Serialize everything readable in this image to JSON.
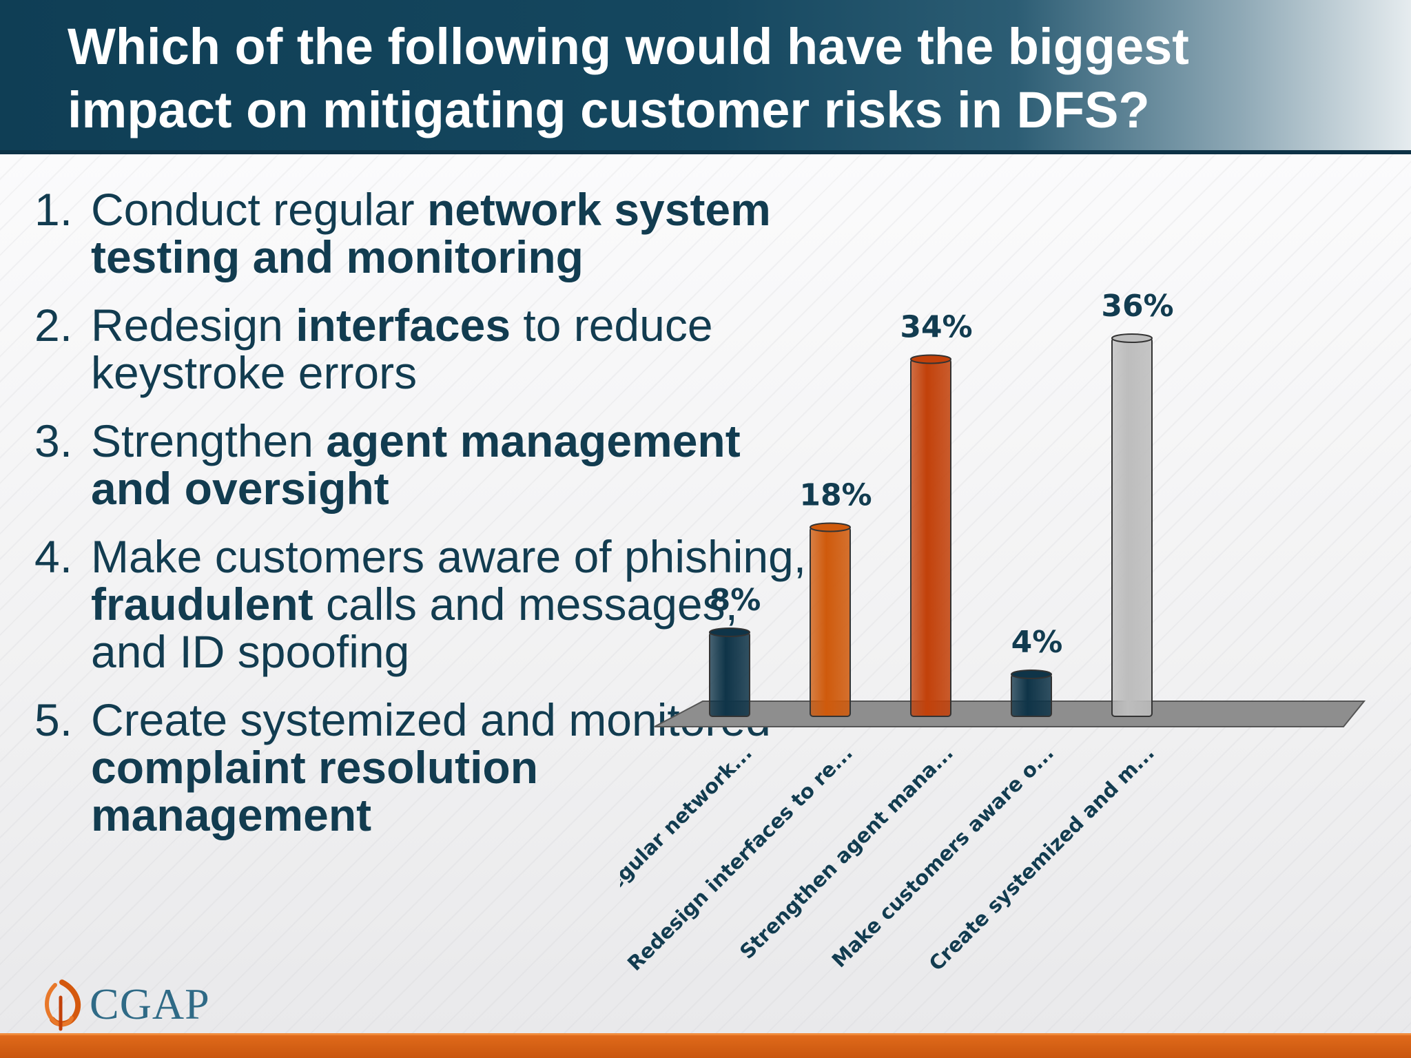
{
  "slide": {
    "title": "Which of the following would have the biggest impact on mitigating customer risks in DFS?",
    "options": [
      {
        "num": "1.",
        "parts": [
          {
            "text": "Conduct regular ",
            "bold": false
          },
          {
            "text": "network system testing and monitoring",
            "bold": true
          }
        ]
      },
      {
        "num": "2.",
        "parts": [
          {
            "text": "Redesign ",
            "bold": false
          },
          {
            "text": "interfaces",
            "bold": true
          },
          {
            "text": " to reduce keystroke errors",
            "bold": false
          }
        ]
      },
      {
        "num": "3.",
        "parts": [
          {
            "text": "Strengthen ",
            "bold": false
          },
          {
            "text": "agent management and oversight",
            "bold": true
          }
        ]
      },
      {
        "num": "4.",
        "parts": [
          {
            "text": "Make customers aware of phishing, ",
            "bold": false
          },
          {
            "text": "fraudulent",
            "bold": true
          },
          {
            "text": " calls and messages, and ID spoofing",
            "bold": false
          }
        ]
      },
      {
        "num": "5.",
        "parts": [
          {
            "text": "Create systemized and monitored ",
            "bold": false
          },
          {
            "text": "complaint resolution management",
            "bold": true
          }
        ]
      }
    ],
    "logo": "CGAP"
  },
  "colors": {
    "navy": "#0f3e55",
    "orange": "#d4580d",
    "red_orange": "#c2410a",
    "gray_bar": "#bdbdbd",
    "floor": "#8e8e8e"
  },
  "chart_data": {
    "type": "bar",
    "categories": [
      "Conduct regular network...",
      "Redesign interfaces to re...",
      "Strengthen agent mana...",
      "Make customers aware o...",
      "Create systemized and m..."
    ],
    "values": [
      8,
      18,
      34,
      4,
      36
    ],
    "value_labels": [
      "8%",
      "18%",
      "34%",
      "4%",
      "36%"
    ],
    "bar_colors": [
      "#0f3448",
      "#cf5a0c",
      "#c2410a",
      "#0f3448",
      "#bdbdbd"
    ],
    "ylim": [
      0,
      40
    ],
    "grid": false,
    "legend": "none",
    "title": "",
    "xlabel": "",
    "ylabel": ""
  }
}
